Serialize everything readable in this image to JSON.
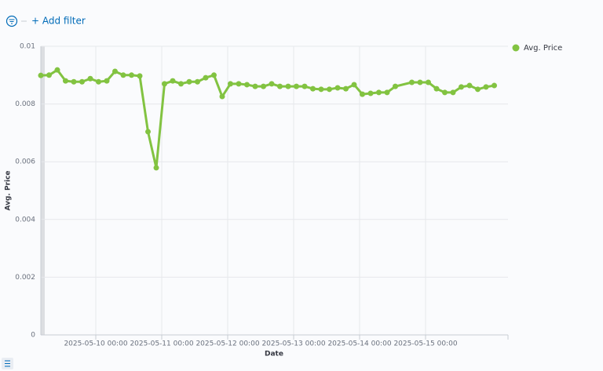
{
  "filter_bar": {
    "add_filter": "+ Add filter"
  },
  "chart_data": {
    "type": "line",
    "x_label": "Date",
    "y_label": "Avg. Price",
    "x": [
      "2025-05-09 04:00",
      "2025-05-09 07:00",
      "2025-05-09 10:00",
      "2025-05-09 13:00",
      "2025-05-09 16:00",
      "2025-05-09 19:00",
      "2025-05-09 22:00",
      "2025-05-10 01:00",
      "2025-05-10 04:00",
      "2025-05-10 07:00",
      "2025-05-10 10:00",
      "2025-05-10 13:00",
      "2025-05-10 16:00",
      "2025-05-10 19:00",
      "2025-05-10 22:00",
      "2025-05-11 01:00",
      "2025-05-11 04:00",
      "2025-05-11 07:00",
      "2025-05-11 10:00",
      "2025-05-11 13:00",
      "2025-05-11 16:00",
      "2025-05-11 19:00",
      "2025-05-11 22:00",
      "2025-05-12 01:00",
      "2025-05-12 04:00",
      "2025-05-12 07:00",
      "2025-05-12 10:00",
      "2025-05-12 13:00",
      "2025-05-12 16:00",
      "2025-05-12 19:00",
      "2025-05-12 22:00",
      "2025-05-13 01:00",
      "2025-05-13 04:00",
      "2025-05-13 07:00",
      "2025-05-13 10:00",
      "2025-05-13 13:00",
      "2025-05-13 16:00",
      "2025-05-13 19:00",
      "2025-05-13 22:00",
      "2025-05-14 01:00",
      "2025-05-14 04:00",
      "2025-05-14 07:00",
      "2025-05-14 10:00",
      "2025-05-14 13:00",
      "2025-05-14 19:00",
      "2025-05-14 22:00",
      "2025-05-15 01:00",
      "2025-05-15 04:00",
      "2025-05-15 07:00",
      "2025-05-15 10:00",
      "2025-05-15 13:00",
      "2025-05-15 16:00",
      "2025-05-15 19:00",
      "2025-05-15 22:00",
      "2025-05-16 01:00"
    ],
    "series": [
      {
        "name": "Avg. Price",
        "color": "#82c341",
        "values": [
          0.00899,
          0.009,
          0.00918,
          0.0088,
          0.00877,
          0.00877,
          0.00888,
          0.00877,
          0.0088,
          0.00913,
          0.009,
          0.009,
          0.00897,
          0.00704,
          0.00579,
          0.0087,
          0.0088,
          0.0087,
          0.00877,
          0.00877,
          0.00891,
          0.009,
          0.00826,
          0.0087,
          0.0087,
          0.00867,
          0.00861,
          0.00861,
          0.0087,
          0.00861,
          0.00861,
          0.00861,
          0.00861,
          0.00853,
          0.00851,
          0.00851,
          0.00856,
          0.00853,
          0.00867,
          0.00834,
          0.00837,
          0.0084,
          0.0084,
          0.00861,
          0.00875,
          0.00875,
          0.00875,
          0.00853,
          0.0084,
          0.0084,
          0.00859,
          0.00864,
          0.00851,
          0.00859,
          0.00864
        ]
      }
    ],
    "xlim": [
      "2025-05-09 04:00",
      "2025-05-16 06:00"
    ],
    "xticks": [
      "2025-05-10 00:00",
      "2025-05-11 00:00",
      "2025-05-12 00:00",
      "2025-05-13 00:00",
      "2025-05-14 00:00",
      "2025-05-15 00:00"
    ],
    "ylim": [
      0,
      0.01
    ],
    "yticks": [
      0,
      0.002,
      0.004,
      0.006,
      0.008,
      0.01
    ],
    "grid": true,
    "legend": "right"
  }
}
